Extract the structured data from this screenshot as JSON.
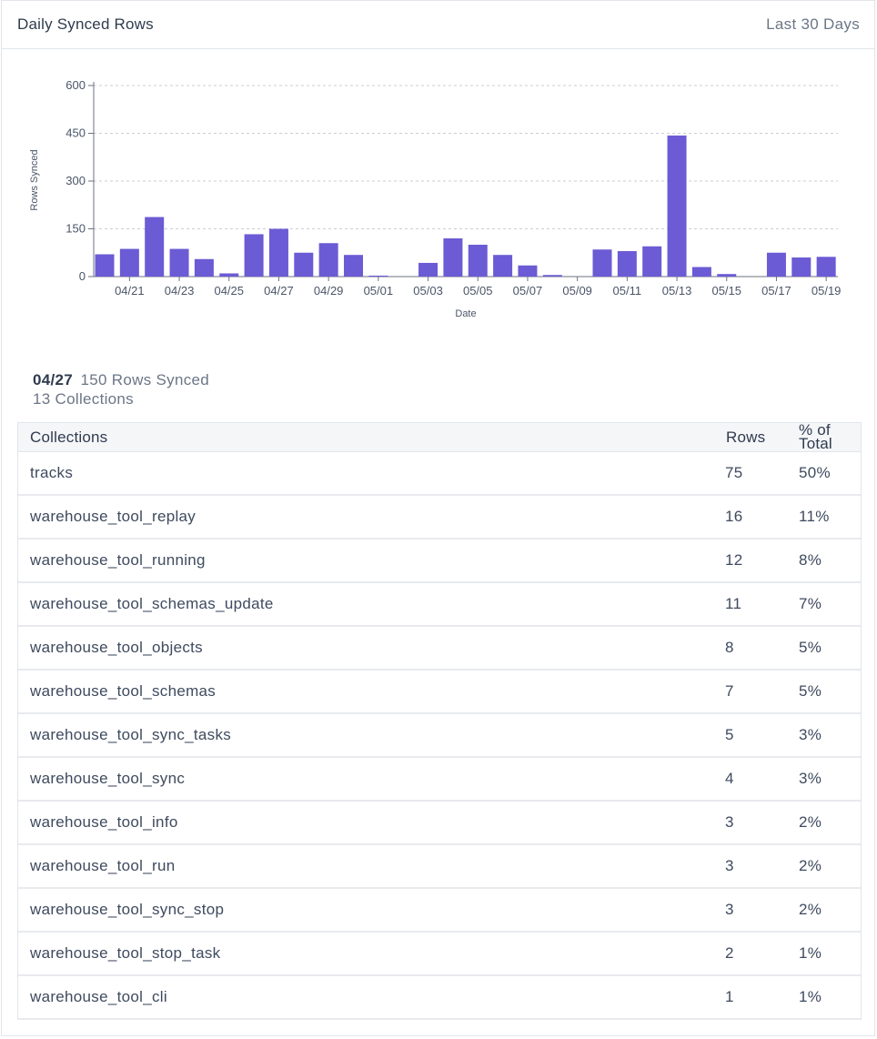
{
  "header": {
    "title": "Daily Synced Rows",
    "range": "Last 30 Days"
  },
  "chart_data": {
    "type": "bar",
    "xlabel": "Date",
    "ylabel": "Rows Synced",
    "ylim": [
      0,
      600
    ],
    "yticks": [
      0,
      150,
      300,
      450,
      600
    ],
    "grid": "horizontal dashed",
    "bar_color": "#6b5bd4",
    "categories": [
      "04/20",
      "04/21",
      "04/22",
      "04/23",
      "04/24",
      "04/25",
      "04/26",
      "04/27",
      "04/28",
      "04/29",
      "04/30",
      "05/01",
      "05/02",
      "05/03",
      "05/04",
      "05/05",
      "05/06",
      "05/07",
      "05/08",
      "05/09",
      "05/10",
      "05/11",
      "05/12",
      "05/13",
      "05/14",
      "05/15",
      "05/16",
      "05/17",
      "05/18",
      "05/19"
    ],
    "tick_labels": [
      "04/21",
      "04/23",
      "04/25",
      "04/27",
      "04/29",
      "05/01",
      "05/03",
      "05/05",
      "05/07",
      "05/09",
      "05/11",
      "05/13",
      "05/15",
      "05/17",
      "05/19"
    ],
    "values": [
      70,
      87,
      187,
      87,
      55,
      10,
      133,
      150,
      75,
      105,
      68,
      3,
      0,
      43,
      120,
      100,
      68,
      35,
      5,
      0,
      85,
      80,
      95,
      443,
      30,
      8,
      0,
      75,
      60,
      62
    ]
  },
  "summary": {
    "date": "04/27",
    "rows_synced": "150 Rows Synced",
    "collections": "13 Collections"
  },
  "table": {
    "headers": {
      "name": "Collections",
      "rows": "Rows",
      "pct": "% of Total"
    },
    "rows": [
      {
        "name": "tracks",
        "rows": "75",
        "pct": "50%"
      },
      {
        "name": "warehouse_tool_replay",
        "rows": "16",
        "pct": "11%"
      },
      {
        "name": "warehouse_tool_running",
        "rows": "12",
        "pct": "8%"
      },
      {
        "name": "warehouse_tool_schemas_update",
        "rows": "11",
        "pct": "7%"
      },
      {
        "name": "warehouse_tool_objects",
        "rows": "8",
        "pct": "5%"
      },
      {
        "name": "warehouse_tool_schemas",
        "rows": "7",
        "pct": "5%"
      },
      {
        "name": "warehouse_tool_sync_tasks",
        "rows": "5",
        "pct": "3%"
      },
      {
        "name": "warehouse_tool_sync",
        "rows": "4",
        "pct": "3%"
      },
      {
        "name": "warehouse_tool_info",
        "rows": "3",
        "pct": "2%"
      },
      {
        "name": "warehouse_tool_run",
        "rows": "3",
        "pct": "2%"
      },
      {
        "name": "warehouse_tool_sync_stop",
        "rows": "3",
        "pct": "2%"
      },
      {
        "name": "warehouse_tool_stop_task",
        "rows": "2",
        "pct": "1%"
      },
      {
        "name": "warehouse_tool_cli",
        "rows": "1",
        "pct": "1%"
      }
    ]
  }
}
